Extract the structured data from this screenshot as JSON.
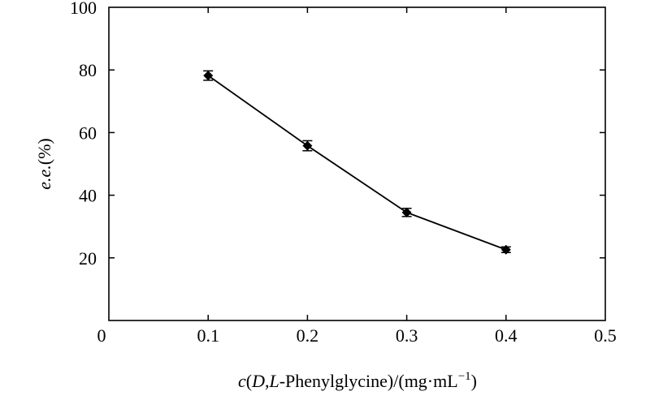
{
  "chart_data": {
    "type": "line",
    "x": [
      0.1,
      0.2,
      0.3,
      0.4
    ],
    "series": [
      {
        "values": [
          78.2,
          55.8,
          34.5,
          22.6
        ],
        "errors": [
          1.5,
          1.6,
          1.3,
          0.9
        ],
        "marker": "diamond",
        "color": "#000000"
      }
    ],
    "xlim": [
      0,
      0.5
    ],
    "ylim": [
      0,
      100
    ],
    "xticks": [
      "0",
      "0.1",
      "0.2",
      "0.3",
      "0.4",
      "0.5"
    ],
    "yticks": [
      "20",
      "40",
      "60",
      "80",
      "100"
    ],
    "xticks_values": [
      0,
      0.1,
      0.2,
      0.3,
      0.4,
      0.5
    ],
    "yticks_values": [
      20,
      40,
      60,
      80,
      100
    ],
    "xlabel": {
      "p1": "c",
      "p2": "(",
      "p3": "D",
      "p4": ",",
      "p5": "L",
      "p6": "-Phenylglycine)/(mg·mL",
      "p7": "−1",
      "p8": ")"
    },
    "ylabel": {
      "p1": "e.e.",
      "p2": "(%)"
    },
    "grid": false,
    "legend": "none"
  }
}
